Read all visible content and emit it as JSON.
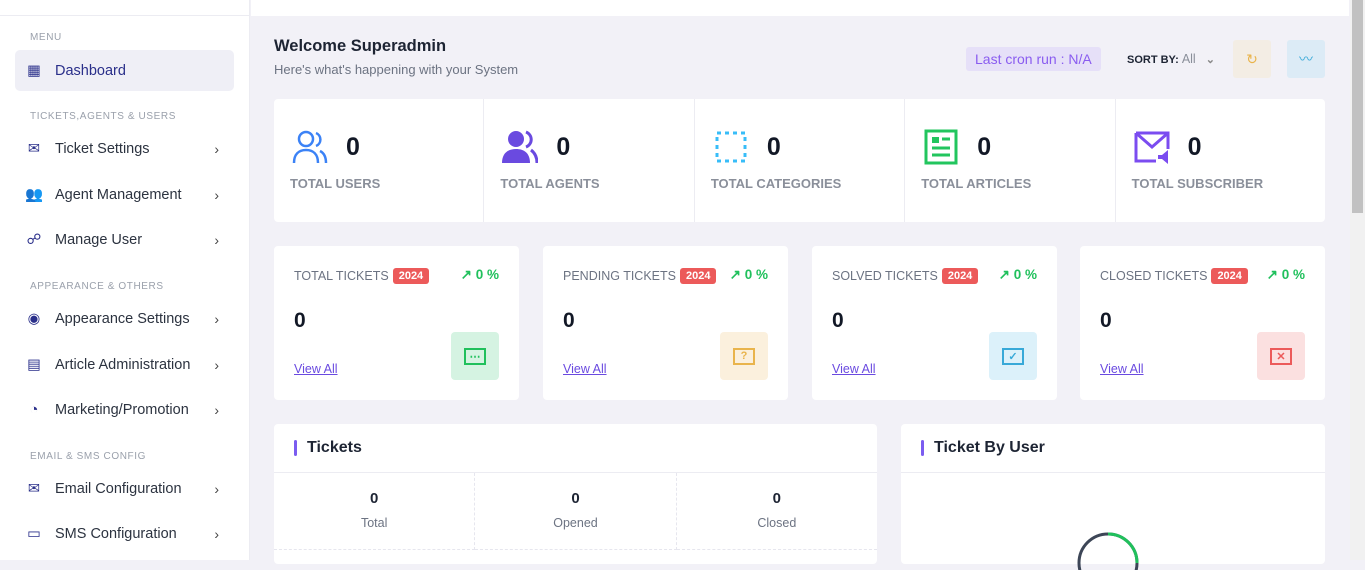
{
  "sidebar": {
    "sections": [
      "MENU",
      "TICKETS,AGENTS & USERS",
      "APPEARANCE & OTHERS",
      "EMAIL & SMS CONFIG"
    ],
    "items": [
      {
        "label": "Dashboard",
        "icon": "dashboard-icon"
      },
      {
        "label": "Ticket Settings",
        "icon": "mail-fast-icon"
      },
      {
        "label": "Agent Management",
        "icon": "users-icon"
      },
      {
        "label": "Manage User",
        "icon": "team-icon"
      },
      {
        "label": "Appearance Settings",
        "icon": "globe-icon"
      },
      {
        "label": "Article Administration",
        "icon": "article-icon"
      },
      {
        "label": "Marketing/Promotion",
        "icon": "chart-icon"
      },
      {
        "label": "Email Configuration",
        "icon": "mail-settings-icon"
      },
      {
        "label": "SMS Configuration",
        "icon": "sms-icon"
      }
    ]
  },
  "header": {
    "title": "Welcome Superadmin",
    "subtitle": "Here's what's happening with your System",
    "cron": "Last cron run : N/A",
    "sort_label": "SORT BY:",
    "sort_value": "All"
  },
  "stats": [
    {
      "value": "0",
      "label": "TOTAL USERS",
      "color": "#3b82f6"
    },
    {
      "value": "0",
      "label": "TOTAL AGENTS",
      "color": "#6a4ae0"
    },
    {
      "value": "0",
      "label": "TOTAL CATEGORIES",
      "color": "#38bdf8"
    },
    {
      "value": "0",
      "label": "TOTAL ARTICLES",
      "color": "#22c55e"
    },
    {
      "value": "0",
      "label": "TOTAL SUBSCRIBER",
      "color": "#7b4cf0"
    }
  ],
  "ticket_cards": [
    {
      "title": "TOTAL TICKETS",
      "year": "2024",
      "pct": "0 %",
      "value": "0",
      "link": "View All",
      "bg": "#d5f3e2",
      "fg": "#20c05c"
    },
    {
      "title": "PENDING TICKETS",
      "year": "2024",
      "pct": "0 %",
      "value": "0",
      "link": "View All",
      "bg": "#fbf0dd",
      "fg": "#e9b44c"
    },
    {
      "title": "SOLVED TICKETS",
      "year": "2024",
      "pct": "0 %",
      "value": "0",
      "link": "View All",
      "bg": "#dcf1fa",
      "fg": "#38a9d8"
    },
    {
      "title": "CLOSED TICKETS",
      "year": "2024",
      "pct": "0 %",
      "value": "0",
      "link": "View All",
      "bg": "#fbe0e0",
      "fg": "#ec5a5a"
    }
  ],
  "tickets_panel": {
    "title": "Tickets",
    "stats": [
      {
        "value": "0",
        "label": "Total"
      },
      {
        "value": "0",
        "label": "Opened"
      },
      {
        "value": "0",
        "label": "Closed"
      }
    ]
  },
  "user_panel": {
    "title": "Ticket By User"
  }
}
